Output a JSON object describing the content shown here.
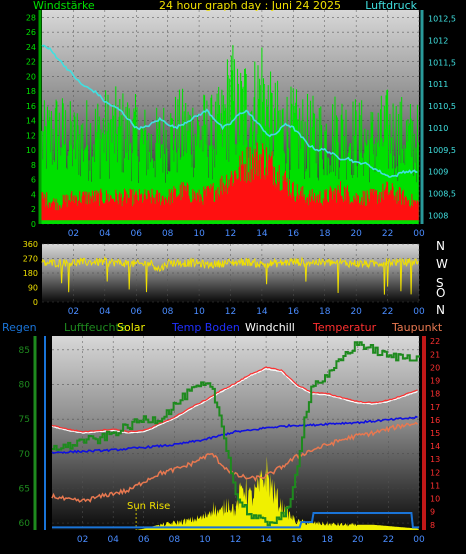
{
  "colors": {
    "background": "#000000",
    "wind_gust": "#00e000",
    "wind_avg": "#ff1010",
    "pressure": "#40e0e0",
    "direction": "#f0e000",
    "humidity": "#1e8a1e",
    "ground_temp": "#1010e0",
    "windchill": "#ffffff",
    "temperature": "#ff3030",
    "dewpoint": "#e87850",
    "solar": "#f0f000",
    "rain": "#1a74d8"
  },
  "chart_data": [
    {
      "type": "line",
      "title": "24 hour graph day : Juni 24 2025",
      "left_axis_label": "Windstärke",
      "right_axis_label": "Luftdruck",
      "x_ticks": [
        "02",
        "04",
        "06",
        "08",
        "10",
        "12",
        "14",
        "16",
        "18",
        "20",
        "22",
        "00"
      ],
      "y_left_ticks": [
        "0",
        "2",
        "4",
        "6",
        "8",
        "10",
        "12",
        "14",
        "16",
        "18",
        "20",
        "22",
        "24",
        "26",
        "28"
      ],
      "y_left_range": [
        0,
        29
      ],
      "y_right_ticks": [
        "1008",
        "1008,5",
        "1009",
        "1009,5",
        "1010",
        "1010,5",
        "1011",
        "1011,5",
        "1012",
        "1012,5"
      ],
      "y_right_range": [
        1007.8,
        1012.7
      ],
      "x_range_hours": [
        0,
        24
      ],
      "series": [
        {
          "key": "wind_gust",
          "hours": [
            0,
            1,
            2,
            3,
            4,
            5,
            6,
            7,
            8,
            9,
            10,
            11,
            11.5,
            12,
            12.5,
            13,
            13.5,
            14,
            14.5,
            15,
            16,
            17,
            18,
            19,
            20,
            21,
            22,
            23,
            24
          ],
          "values": [
            15,
            17,
            15,
            16,
            17,
            17,
            16,
            14,
            16,
            17,
            17,
            16,
            18,
            24,
            20,
            22,
            21,
            25,
            19,
            18,
            17,
            16,
            16,
            17,
            16,
            15,
            17,
            16,
            15
          ]
        },
        {
          "key": "wind_avg",
          "hours": [
            0,
            1,
            2,
            3,
            4,
            5,
            6,
            7,
            8,
            9,
            10,
            11,
            12,
            13,
            14,
            15,
            16,
            17,
            18,
            19,
            20,
            21,
            22,
            23,
            24
          ],
          "values": [
            4,
            3,
            4,
            4,
            4,
            4,
            4,
            4,
            4,
            5,
            4,
            5,
            7,
            9,
            10,
            8,
            5,
            4,
            4,
            5,
            4,
            4,
            5,
            4,
            3
          ]
        },
        {
          "key": "pressure",
          "hours": [
            0,
            0.5,
            1,
            1.5,
            2,
            2.5,
            3,
            3.5,
            4,
            4.5,
            5,
            5.5,
            6,
            6.5,
            7,
            7.5,
            8,
            8.5,
            9,
            9.5,
            10,
            10.5,
            11,
            11.5,
            12,
            12.5,
            13,
            13.5,
            14,
            14.5,
            15,
            15.5,
            16,
            16.5,
            17,
            17.5,
            18,
            18.5,
            19,
            19.5,
            20,
            20.5,
            21,
            21.5,
            22,
            22.5,
            23,
            23.5,
            24
          ],
          "values": [
            1011.9,
            1011.8,
            1011.6,
            1011.4,
            1011.2,
            1011.0,
            1010.9,
            1010.8,
            1010.6,
            1010.5,
            1010.4,
            1010.2,
            1010.0,
            1010.0,
            1010.1,
            1010.2,
            1010.1,
            1010.0,
            1010.1,
            1010.2,
            1010.3,
            1010.4,
            1010.2,
            1010.0,
            1010.1,
            1010.3,
            1010.4,
            1010.2,
            1010.0,
            1009.8,
            1009.9,
            1010.1,
            1010.0,
            1009.8,
            1009.6,
            1009.5,
            1009.5,
            1009.4,
            1009.3,
            1009.3,
            1009.2,
            1009.2,
            1009.1,
            1009.0,
            1008.9,
            1008.9,
            1009.0,
            1009.0,
            1009.0
          ]
        }
      ]
    },
    {
      "type": "line",
      "x_ticks": [
        "02",
        "04",
        "06",
        "08",
        "10",
        "12",
        "14",
        "16",
        "18",
        "20",
        "22",
        "00"
      ],
      "y_ticks": [
        "0",
        "90",
        "180",
        "270",
        "360"
      ],
      "y_range": [
        0,
        360
      ],
      "compass_labels": [
        "N",
        "W",
        "S",
        "O",
        "N"
      ],
      "x_range_hours": [
        0,
        24
      ],
      "series": [
        {
          "key": "direction",
          "hours": [
            0,
            2,
            4,
            6,
            7,
            7.5,
            8,
            10,
            10.5,
            12,
            13,
            14,
            15,
            16,
            18,
            20,
            21,
            22,
            23,
            24
          ],
          "values": [
            240,
            245,
            250,
            235,
            240,
            200,
            245,
            240,
            230,
            245,
            250,
            235,
            240,
            250,
            245,
            240,
            235,
            250,
            245,
            250
          ]
        }
      ]
    },
    {
      "type": "line",
      "legend": [
        "Regen",
        "Luftfeuchte",
        "Solar",
        "Temp Boden",
        "Windchill",
        "Temperatur",
        "Taupunkt"
      ],
      "x_ticks": [
        "02",
        "04",
        "06",
        "08",
        "10",
        "12",
        "14",
        "16",
        "18",
        "20",
        "22",
        "00"
      ],
      "y_left_ticks": [
        "60",
        "65",
        "70",
        "75",
        "80",
        "85"
      ],
      "y_left_range": [
        59,
        87
      ],
      "y_right_ticks": [
        "8",
        "9",
        "10",
        "11",
        "12",
        "13",
        "14",
        "15",
        "16",
        "17",
        "18",
        "19",
        "20",
        "21",
        "22"
      ],
      "y_right_range": [
        7.6,
        22.4
      ],
      "annotation": "Sun Rise",
      "x_range_hours": [
        0,
        24
      ],
      "series": [
        {
          "key": "humidity",
          "axis": "left",
          "hours": [
            0,
            1,
            2,
            3,
            4,
            5,
            6,
            7,
            8,
            9,
            10,
            10.5,
            11,
            11.5,
            12,
            13,
            14,
            15,
            15.5,
            16,
            16.5,
            17,
            18,
            19,
            20,
            21,
            22,
            23,
            24
          ],
          "values": [
            71,
            71,
            72,
            72,
            73,
            74,
            75,
            75,
            77,
            79,
            80,
            79,
            75,
            70,
            64,
            61,
            60,
            61,
            62,
            68,
            75,
            80,
            81,
            84,
            86,
            85,
            84,
            84,
            84
          ]
        },
        {
          "key": "ground_temp",
          "axis": "right",
          "hours": [
            0,
            2,
            4,
            6,
            8,
            10,
            11,
            12,
            13,
            14,
            15,
            16,
            17,
            18,
            20,
            22,
            24
          ],
          "values": [
            13.5,
            13.6,
            13.7,
            13.9,
            14.1,
            14.5,
            14.8,
            15.1,
            15.2,
            15.4,
            15.5,
            15.6,
            15.6,
            15.7,
            15.8,
            16.0,
            16.2
          ]
        },
        {
          "key": "windchill",
          "axis": "right",
          "hours": [
            0,
            1,
            2,
            3,
            4,
            5,
            6,
            6.5,
            7,
            8,
            9,
            10,
            11,
            12,
            13,
            14,
            15,
            16,
            17,
            18,
            19,
            20,
            21,
            22,
            23,
            24
          ],
          "values": [
            15.5,
            15.2,
            15.0,
            15.1,
            15.2,
            15.0,
            15.1,
            15.3,
            15.6,
            16.1,
            16.8,
            17.4,
            18.1,
            18.7,
            19.4,
            19.9,
            19.7,
            18.6,
            18.0,
            17.9,
            17.6,
            17.3,
            17.2,
            17.4,
            17.8,
            18.2
          ]
        },
        {
          "key": "temperature",
          "axis": "right",
          "hours": [
            0,
            1,
            2,
            3,
            4,
            5,
            6,
            6.5,
            7,
            8,
            9,
            10,
            11,
            12,
            13,
            14,
            15,
            16,
            17,
            18,
            19,
            20,
            21,
            22,
            23,
            24
          ],
          "values": [
            15.6,
            15.3,
            15.1,
            15.2,
            15.3,
            15.1,
            15.2,
            15.4,
            15.7,
            16.2,
            16.9,
            17.5,
            18.2,
            18.8,
            19.5,
            20.0,
            19.8,
            18.7,
            18.1,
            18.0,
            17.7,
            17.4,
            17.3,
            17.5,
            17.9,
            18.3
          ]
        },
        {
          "key": "dewpoint",
          "axis": "right",
          "hours": [
            0,
            1,
            2,
            3,
            4,
            5,
            6,
            7,
            8,
            9,
            10,
            10.5,
            11,
            11.5,
            12,
            13,
            14,
            15,
            16,
            17,
            18,
            19,
            20,
            21,
            22,
            23,
            24
          ],
          "values": [
            10.2,
            9.9,
            9.8,
            10.1,
            10.4,
            10.6,
            11.3,
            11.9,
            12.2,
            12.6,
            13.2,
            13.4,
            12.7,
            12.2,
            11.8,
            11.5,
            11.7,
            12.4,
            13.2,
            13.7,
            14.1,
            14.5,
            14.8,
            15.0,
            15.3,
            15.6,
            15.8
          ]
        },
        {
          "key": "solar",
          "axis": "right",
          "hours": [
            0,
            5.5,
            6,
            7,
            8,
            9,
            10,
            10.5,
            11,
            11.5,
            12,
            12.5,
            13,
            13.5,
            14,
            14.5,
            15,
            15.5,
            16,
            17,
            18,
            19,
            20,
            21,
            22,
            23,
            24
          ],
          "values": [
            7.6,
            7.6,
            7.7,
            8.0,
            8.2,
            8.4,
            8.7,
            9.5,
            9.0,
            10.0,
            9.2,
            11.5,
            10.3,
            11.0,
            12.5,
            10.8,
            9.6,
            8.9,
            8.3,
            8.2,
            8.1,
            8.05,
            8.0,
            8.0,
            7.9,
            7.8,
            7.7
          ]
        },
        {
          "key": "rain",
          "axis": "right",
          "hours": [
            0,
            16.2,
            16.3,
            17,
            17.1,
            23.5,
            23.6,
            24
          ],
          "values": [
            7.8,
            7.8,
            8.2,
            8.2,
            8.9,
            8.9,
            7.8,
            7.8
          ]
        }
      ]
    }
  ]
}
